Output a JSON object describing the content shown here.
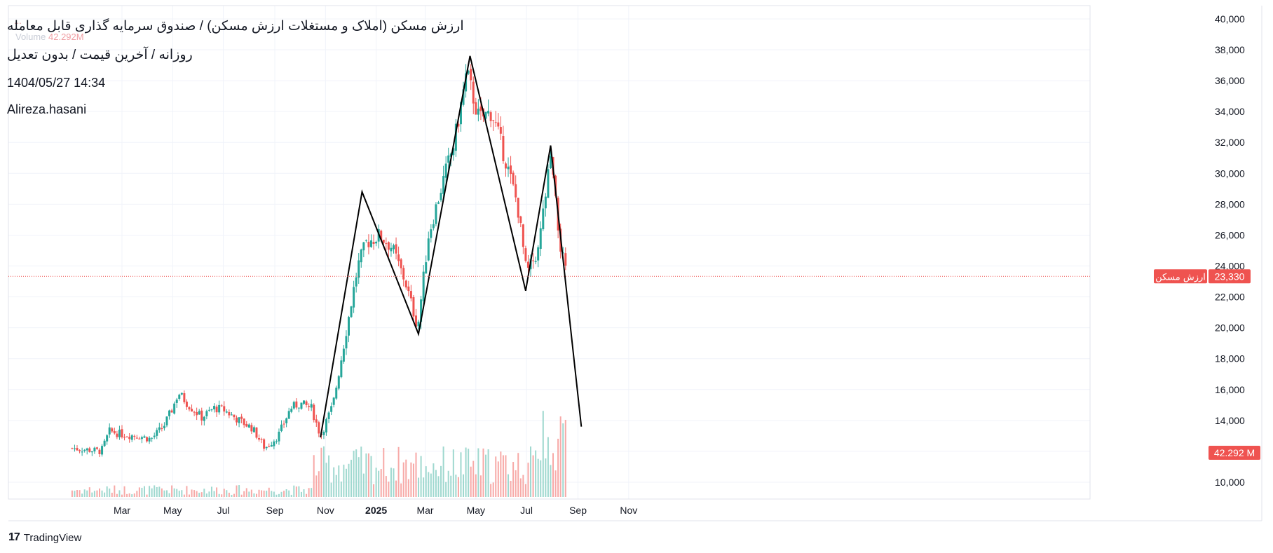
{
  "header": {
    "title": "ارزش مسکن (املاک و مستغلات ارزش مسکن) / صندوق سرمایه گذاری قابل معامله",
    "subtitle": "روزانه / آخرین قیمت / بدون تعدیل",
    "datetime": "1404/05/27 14:34",
    "author": "Alireza.hasani",
    "volume_label": "Volume",
    "volume_value": "42.292M"
  },
  "branding": {
    "logo_text": "TradingView"
  },
  "colors": {
    "up": "#26a69a",
    "down": "#ef5350",
    "vol_up": "#9fd8cf",
    "vol_down": "#f7a9a7",
    "price_line": "#ef5350",
    "pattern_line": "#000000",
    "grid": "#f0f3fa",
    "axis_text": "#131722"
  },
  "chart_data": {
    "type": "candlestick",
    "title": "ارزش مسکن (املاک و مستغلات ارزش مسکن) / صندوق سرمایه گذاری قابل معامله",
    "xlabel": "",
    "ylabel": "",
    "x_ticks": [
      "Mar",
      "May",
      "Jul",
      "Sep",
      "Nov",
      "2025",
      "Mar",
      "May",
      "Jul",
      "Sep",
      "Nov"
    ],
    "y_ticks": [
      "10,000",
      "12,000",
      "14,000",
      "16,000",
      "18,000",
      "20,000",
      "22,000",
      "24,000",
      "26,000",
      "28,000",
      "30,000",
      "32,000",
      "34,000",
      "36,000",
      "38,000",
      "40,000"
    ],
    "ylim": [
      9000,
      40600
    ],
    "grid": true,
    "last_price": {
      "value": 23330,
      "label": "23,330",
      "series_name": "ارزش مسکن"
    },
    "last_volume": {
      "label": "42.292 M"
    },
    "price_series": [
      {
        "date": "2024-01-01",
        "close": 12200
      },
      {
        "date": "2024-01-20",
        "close": 12100
      },
      {
        "date": "2024-02-05",
        "close": 12000
      },
      {
        "date": "2024-02-15",
        "close": 13300
      },
      {
        "date": "2024-03-01",
        "close": 13100
      },
      {
        "date": "2024-03-20",
        "close": 13000
      },
      {
        "date": "2024-04-05",
        "close": 12800
      },
      {
        "date": "2024-04-20",
        "close": 13600
      },
      {
        "date": "2024-05-01",
        "close": 14800
      },
      {
        "date": "2024-05-08",
        "close": 15800
      },
      {
        "date": "2024-05-20",
        "close": 15000
      },
      {
        "date": "2024-06-05",
        "close": 14200
      },
      {
        "date": "2024-06-20",
        "close": 14800
      },
      {
        "date": "2024-07-01",
        "close": 14700
      },
      {
        "date": "2024-07-20",
        "close": 14000
      },
      {
        "date": "2024-08-05",
        "close": 13500
      },
      {
        "date": "2024-08-20",
        "close": 12200
      },
      {
        "date": "2024-09-05",
        "close": 13000
      },
      {
        "date": "2024-09-20",
        "close": 14800
      },
      {
        "date": "2024-10-01",
        "close": 15100
      },
      {
        "date": "2024-10-15",
        "close": 14800
      },
      {
        "date": "2024-10-26",
        "close": 13000
      },
      {
        "date": "2024-11-10",
        "close": 15000
      },
      {
        "date": "2024-11-25",
        "close": 19500
      },
      {
        "date": "2024-12-10",
        "close": 24000
      },
      {
        "date": "2024-12-20",
        "close": 25500
      },
      {
        "date": "2025-01-05",
        "close": 26000
      },
      {
        "date": "2025-01-20",
        "close": 25200
      },
      {
        "date": "2025-02-05",
        "close": 23000
      },
      {
        "date": "2025-02-20",
        "close": 20000
      },
      {
        "date": "2025-03-05",
        "close": 26000
      },
      {
        "date": "2025-03-20",
        "close": 29000
      },
      {
        "date": "2025-04-05",
        "close": 32000
      },
      {
        "date": "2025-04-20",
        "close": 36500
      },
      {
        "date": "2025-05-05",
        "close": 33500
      },
      {
        "date": "2025-05-20",
        "close": 34000
      },
      {
        "date": "2025-06-05",
        "close": 31000
      },
      {
        "date": "2025-06-20",
        "close": 28000
      },
      {
        "date": "2025-07-01",
        "close": 23500
      },
      {
        "date": "2025-07-15",
        "close": 25000
      },
      {
        "date": "2025-07-30",
        "close": 31000
      },
      {
        "date": "2025-08-10",
        "close": 25500
      },
      {
        "date": "2025-08-18",
        "close": 23330
      }
    ],
    "pattern_lines": [
      {
        "date": "2024-10-26",
        "price": 12900
      },
      {
        "date": "2024-12-15",
        "price": 28800
      },
      {
        "date": "2025-02-21",
        "price": 19600
      },
      {
        "date": "2025-04-24",
        "price": 37600
      },
      {
        "date": "2025-06-30",
        "price": 22400
      },
      {
        "date": "2025-07-30",
        "price": 31800
      },
      {
        "date": "2025-09-05",
        "price": 13600
      }
    ]
  }
}
